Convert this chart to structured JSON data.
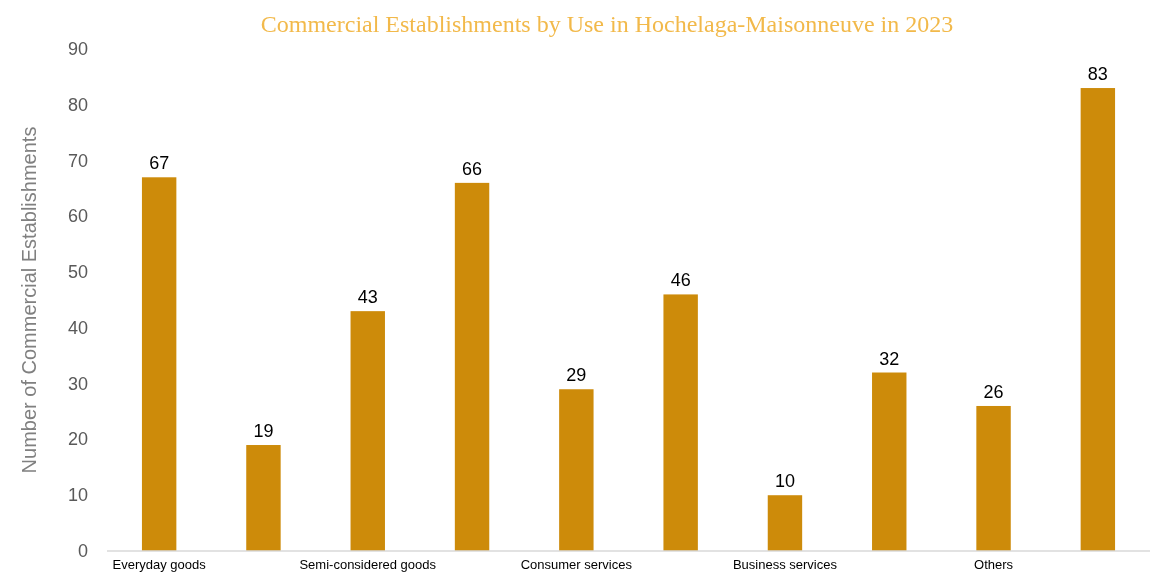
{
  "chart_data": {
    "type": "bar",
    "title": "Commercial Establishments by Use in Hochelaga-Maisonneuve in 2023",
    "ylabel": "Number of Commercial Establishments",
    "categories": [
      "Everyday goods",
      null,
      "Semi-considered goods",
      null,
      "Consumer services",
      null,
      "Business services",
      null,
      "Others",
      null
    ],
    "values": [
      67,
      19,
      43,
      66,
      29,
      46,
      10,
      32,
      26,
      83
    ],
    "color": "#cd8b0a",
    "ylim": [
      0,
      90
    ],
    "yticks": [
      0,
      10,
      20,
      30,
      40,
      50,
      60,
      70,
      80,
      90
    ],
    "data_labels": true,
    "grid": false
  }
}
